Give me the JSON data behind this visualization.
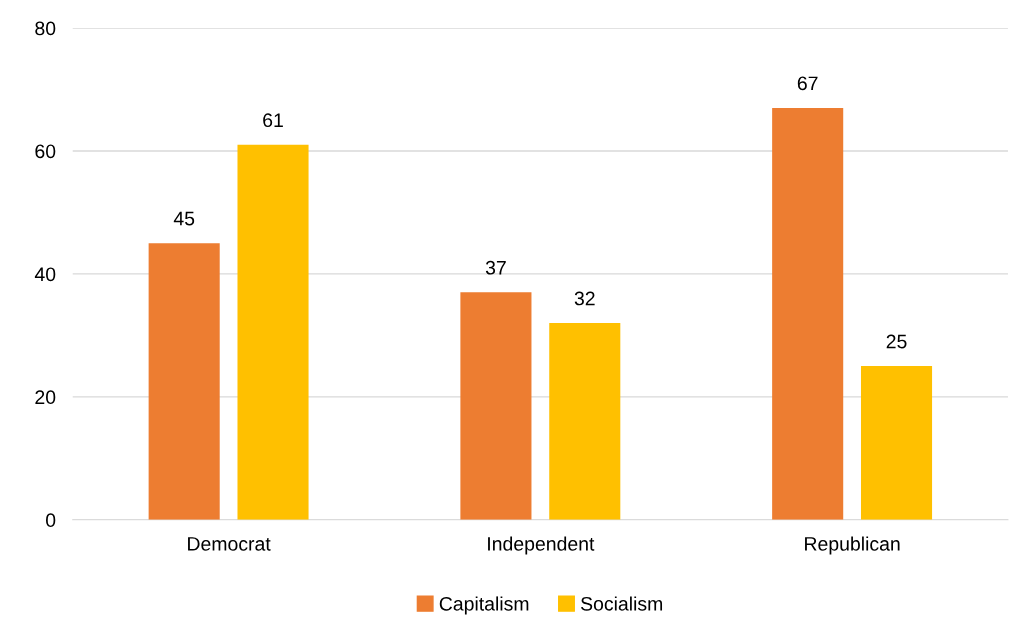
{
  "chart_data": {
    "type": "bar",
    "categories": [
      "Democrat",
      "Independent",
      "Republican"
    ],
    "series": [
      {
        "name": "Capitalism",
        "color": "#ed7d31",
        "values": [
          45,
          37,
          67
        ]
      },
      {
        "name": "Socialism",
        "color": "#ffc000",
        "values": [
          61,
          32,
          25
        ]
      }
    ],
    "ylim": [
      0,
      80
    ],
    "yticks": [
      0,
      20,
      40,
      60,
      80
    ],
    "grid": "y",
    "legend": "bottom",
    "data_labels": true
  }
}
